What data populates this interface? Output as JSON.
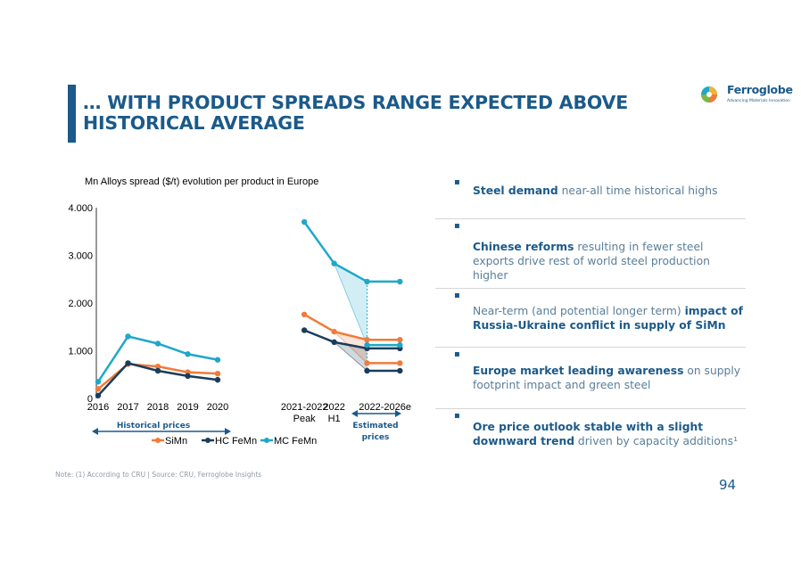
{
  "slide": {
    "title": "… WITH PRODUCT SPREADS RANGE EXPECTED ABOVE HISTORICAL AVERAGE",
    "logo_name": "Ferroglobe",
    "logo_tagline": "Advancing Materials Innovation",
    "page_number": "94",
    "footnote": "Note: (1) According to CRU | Source: CRU, Ferroglobe Insights"
  },
  "bullets": [
    {
      "bold": "Steel demand",
      "rest": " near-all time historical highs"
    },
    {
      "bold": "Chinese reforms",
      "rest": " resulting in fewer steel exports drive rest of world steel production higher"
    },
    {
      "pre": "Near-term (and potential longer term) ",
      "bold": "impact of Russia-Ukraine conflict in supply of SiMn"
    },
    {
      "bold": "Europe market leading awareness",
      "rest": " on supply footprint impact and green steel"
    },
    {
      "bold": "Ore price outlook stable with a slight downward trend",
      "rest": " driven by capacity additions¹"
    }
  ],
  "chart_data": {
    "type": "line",
    "title": "Mn Alloys spread ($/t) evolution per product in Europe",
    "ylim": [
      0,
      4000
    ],
    "y_ticks": [
      "4.000",
      "3.000",
      "2.000",
      "1.000",
      "0"
    ],
    "y_tick_values": [
      4000,
      3000,
      2000,
      1000,
      0
    ],
    "x_labels": [
      {
        "text": "2016",
        "x": 2016
      },
      {
        "text": "2017",
        "x": 2017
      },
      {
        "text": "2018",
        "x": 2018
      },
      {
        "text": "2019",
        "x": 2019
      },
      {
        "text": "2020",
        "x": 2020
      },
      {
        "text": "2021-2022\nPeak",
        "x": 2022.9
      },
      {
        "text": "2022\nH1",
        "x": 2023.9
      },
      {
        "text": "2022-2026e",
        "x": 2025.6
      }
    ],
    "series": [
      {
        "name": "SiMn",
        "color": "#f07b3a",
        "segments": [
          [
            [
              2016,
              200
            ],
            [
              2017,
              720
            ],
            [
              2018,
              670
            ],
            [
              2019,
              550
            ],
            [
              2020,
              520
            ]
          ],
          [
            [
              2022.9,
              1760
            ],
            [
              2023.9,
              1400
            ],
            [
              2025,
              1230
            ],
            [
              2026.1,
              1230
            ]
          ],
          [
            [
              2025,
              740
            ],
            [
              2026.1,
              740
            ]
          ]
        ]
      },
      {
        "name": "HC FeMn",
        "color": "#1a3d5c",
        "segments": [
          [
            [
              2016,
              60
            ],
            [
              2017,
              740
            ],
            [
              2018,
              580
            ],
            [
              2019,
              470
            ],
            [
              2020,
              390
            ]
          ],
          [
            [
              2022.9,
              1430
            ],
            [
              2023.9,
              1180
            ],
            [
              2025,
              1050
            ],
            [
              2026.1,
              1050
            ]
          ],
          [
            [
              2025,
              580
            ],
            [
              2026.1,
              580
            ]
          ]
        ]
      },
      {
        "name": "MC FeMn",
        "color": "#1ea8c9",
        "segments": [
          [
            [
              2016,
              350
            ],
            [
              2017,
              1300
            ],
            [
              2018,
              1150
            ],
            [
              2019,
              930
            ],
            [
              2020,
              810
            ]
          ],
          [
            [
              2022.9,
              3700
            ],
            [
              2023.9,
              2830
            ],
            [
              2025,
              2450
            ],
            [
              2026.1,
              2450
            ]
          ],
          [
            [
              2025,
              1120
            ],
            [
              2026.1,
              1120
            ]
          ]
        ]
      }
    ],
    "fan_areas": [
      {
        "series": "MC FeMn",
        "color": "#1ea8c9",
        "from": [
          2023.9,
          2830
        ],
        "high": 2450,
        "low": 1120
      },
      {
        "series": "SiMn",
        "color": "#f07b3a",
        "from": [
          2023.9,
          1400
        ],
        "high": 1230,
        "low": 740
      },
      {
        "series": "HC FeMn",
        "color": "#1a3d5c",
        "from": [
          2023.9,
          1180
        ],
        "high": 1050,
        "low": 580
      }
    ],
    "period_labels": {
      "historical": "Historical prices",
      "estimated": "Estimated\nprices"
    }
  }
}
